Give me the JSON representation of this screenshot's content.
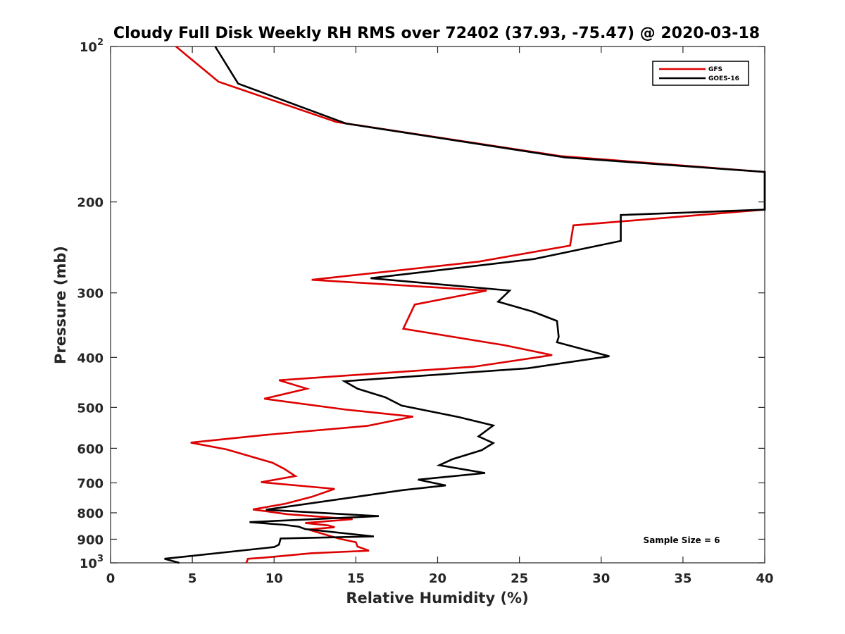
{
  "chart_data": {
    "type": "line",
    "title": "Cloudy Full Disk Weekly RH RMS over 72402 (37.93, -75.47) @ 2020-03-18",
    "xlabel": "Relative Humidity (%)",
    "ylabel": "Pressure (mb)",
    "xlim": [
      0,
      40
    ],
    "ylim": [
      100,
      1000
    ],
    "yscale": "log",
    "y_reversed": true,
    "grid": false,
    "legend_position": "top-right",
    "annotation": "Sample Size = 6",
    "x_ticks": [
      {
        "value": 0,
        "label": "0"
      },
      {
        "value": 5,
        "label": "5"
      },
      {
        "value": 10,
        "label": "10"
      },
      {
        "value": 15,
        "label": "15"
      },
      {
        "value": 20,
        "label": "20"
      },
      {
        "value": 25,
        "label": "25"
      },
      {
        "value": 30,
        "label": "30"
      },
      {
        "value": 35,
        "label": "35"
      },
      {
        "value": 40,
        "label": "40"
      }
    ],
    "y_ticks": [
      {
        "value": 100,
        "label": "10",
        "sup": "2"
      },
      {
        "value": 200,
        "label": "200",
        "sup": ""
      },
      {
        "value": 300,
        "label": "300",
        "sup": ""
      },
      {
        "value": 400,
        "label": "400",
        "sup": ""
      },
      {
        "value": 500,
        "label": "500",
        "sup": ""
      },
      {
        "value": 600,
        "label": "600",
        "sup": ""
      },
      {
        "value": 700,
        "label": "700",
        "sup": ""
      },
      {
        "value": 800,
        "label": "800",
        "sup": ""
      },
      {
        "value": 900,
        "label": "900",
        "sup": ""
      },
      {
        "value": 1000,
        "label": "10",
        "sup": "3"
      }
    ],
    "series": [
      {
        "name": "GFS",
        "color": "#dd0000",
        "points": [
          [
            4.0,
            100
          ],
          [
            6.6,
            117
          ],
          [
            13.8,
            140
          ],
          [
            27.5,
            163
          ],
          [
            40.0,
            175
          ],
          [
            40.0,
            207
          ],
          [
            28.3,
            222
          ],
          [
            28.1,
            243
          ],
          [
            22.5,
            261
          ],
          [
            12.3,
            283
          ],
          [
            23.0,
            297
          ],
          [
            18.6,
            316
          ],
          [
            18.2,
            336
          ],
          [
            17.9,
            352
          ],
          [
            24.1,
            379
          ],
          [
            27.0,
            396
          ],
          [
            22.2,
            417
          ],
          [
            10.3,
            443
          ],
          [
            12.0,
            460
          ],
          [
            9.4,
            481
          ],
          [
            14.4,
            505
          ],
          [
            18.5,
            521
          ],
          [
            15.7,
            543
          ],
          [
            9.5,
            565
          ],
          [
            4.9,
            585
          ],
          [
            7.1,
            603
          ],
          [
            9.9,
            640
          ],
          [
            10.6,
            657
          ],
          [
            11.3,
            679
          ],
          [
            9.2,
            698
          ],
          [
            13.7,
            719
          ],
          [
            12.3,
            745
          ],
          [
            10.7,
            768
          ],
          [
            8.7,
            788
          ],
          [
            10.8,
            805
          ],
          [
            14.8,
            823
          ],
          [
            11.9,
            837
          ],
          [
            13.3,
            846
          ],
          [
            13.7,
            853
          ],
          [
            12.1,
            862
          ],
          [
            14.0,
            898
          ],
          [
            15.0,
            912
          ],
          [
            15.1,
            930
          ],
          [
            15.8,
            947
          ],
          [
            12.3,
            958
          ],
          [
            9.4,
            977
          ],
          [
            8.4,
            982
          ],
          [
            8.3,
            1000
          ]
        ]
      },
      {
        "name": "GOES-16",
        "color": "#000000",
        "points": [
          [
            6.4,
            100
          ],
          [
            7.8,
            118
          ],
          [
            14.4,
            141
          ],
          [
            27.8,
            164
          ],
          [
            40.0,
            175
          ],
          [
            40.0,
            207
          ],
          [
            31.2,
            212
          ],
          [
            31.2,
            238
          ],
          [
            25.9,
            258
          ],
          [
            15.9,
            281
          ],
          [
            24.4,
            297
          ],
          [
            23.7,
            312
          ],
          [
            25.8,
            326
          ],
          [
            27.3,
            340
          ],
          [
            27.4,
            365
          ],
          [
            27.3,
            374
          ],
          [
            30.5,
            398
          ],
          [
            25.5,
            420
          ],
          [
            14.3,
            445
          ],
          [
            15.1,
            460
          ],
          [
            16.8,
            478
          ],
          [
            17.8,
            496
          ],
          [
            21.3,
            522
          ],
          [
            23.4,
            542
          ],
          [
            22.5,
            569
          ],
          [
            23.4,
            586
          ],
          [
            22.7,
            605
          ],
          [
            20.9,
            630
          ],
          [
            20.1,
            647
          ],
          [
            22.9,
            670
          ],
          [
            18.8,
            690
          ],
          [
            20.5,
            708
          ],
          [
            17.9,
            723
          ],
          [
            9.5,
            789
          ],
          [
            16.4,
            812
          ],
          [
            8.5,
            834
          ],
          [
            10.6,
            844
          ],
          [
            11.5,
            851
          ],
          [
            11.9,
            860
          ],
          [
            16.1,
            889
          ],
          [
            10.4,
            897
          ],
          [
            10.3,
            922
          ],
          [
            10.0,
            932
          ],
          [
            3.3,
            982
          ],
          [
            4.2,
            1000
          ]
        ]
      }
    ]
  }
}
